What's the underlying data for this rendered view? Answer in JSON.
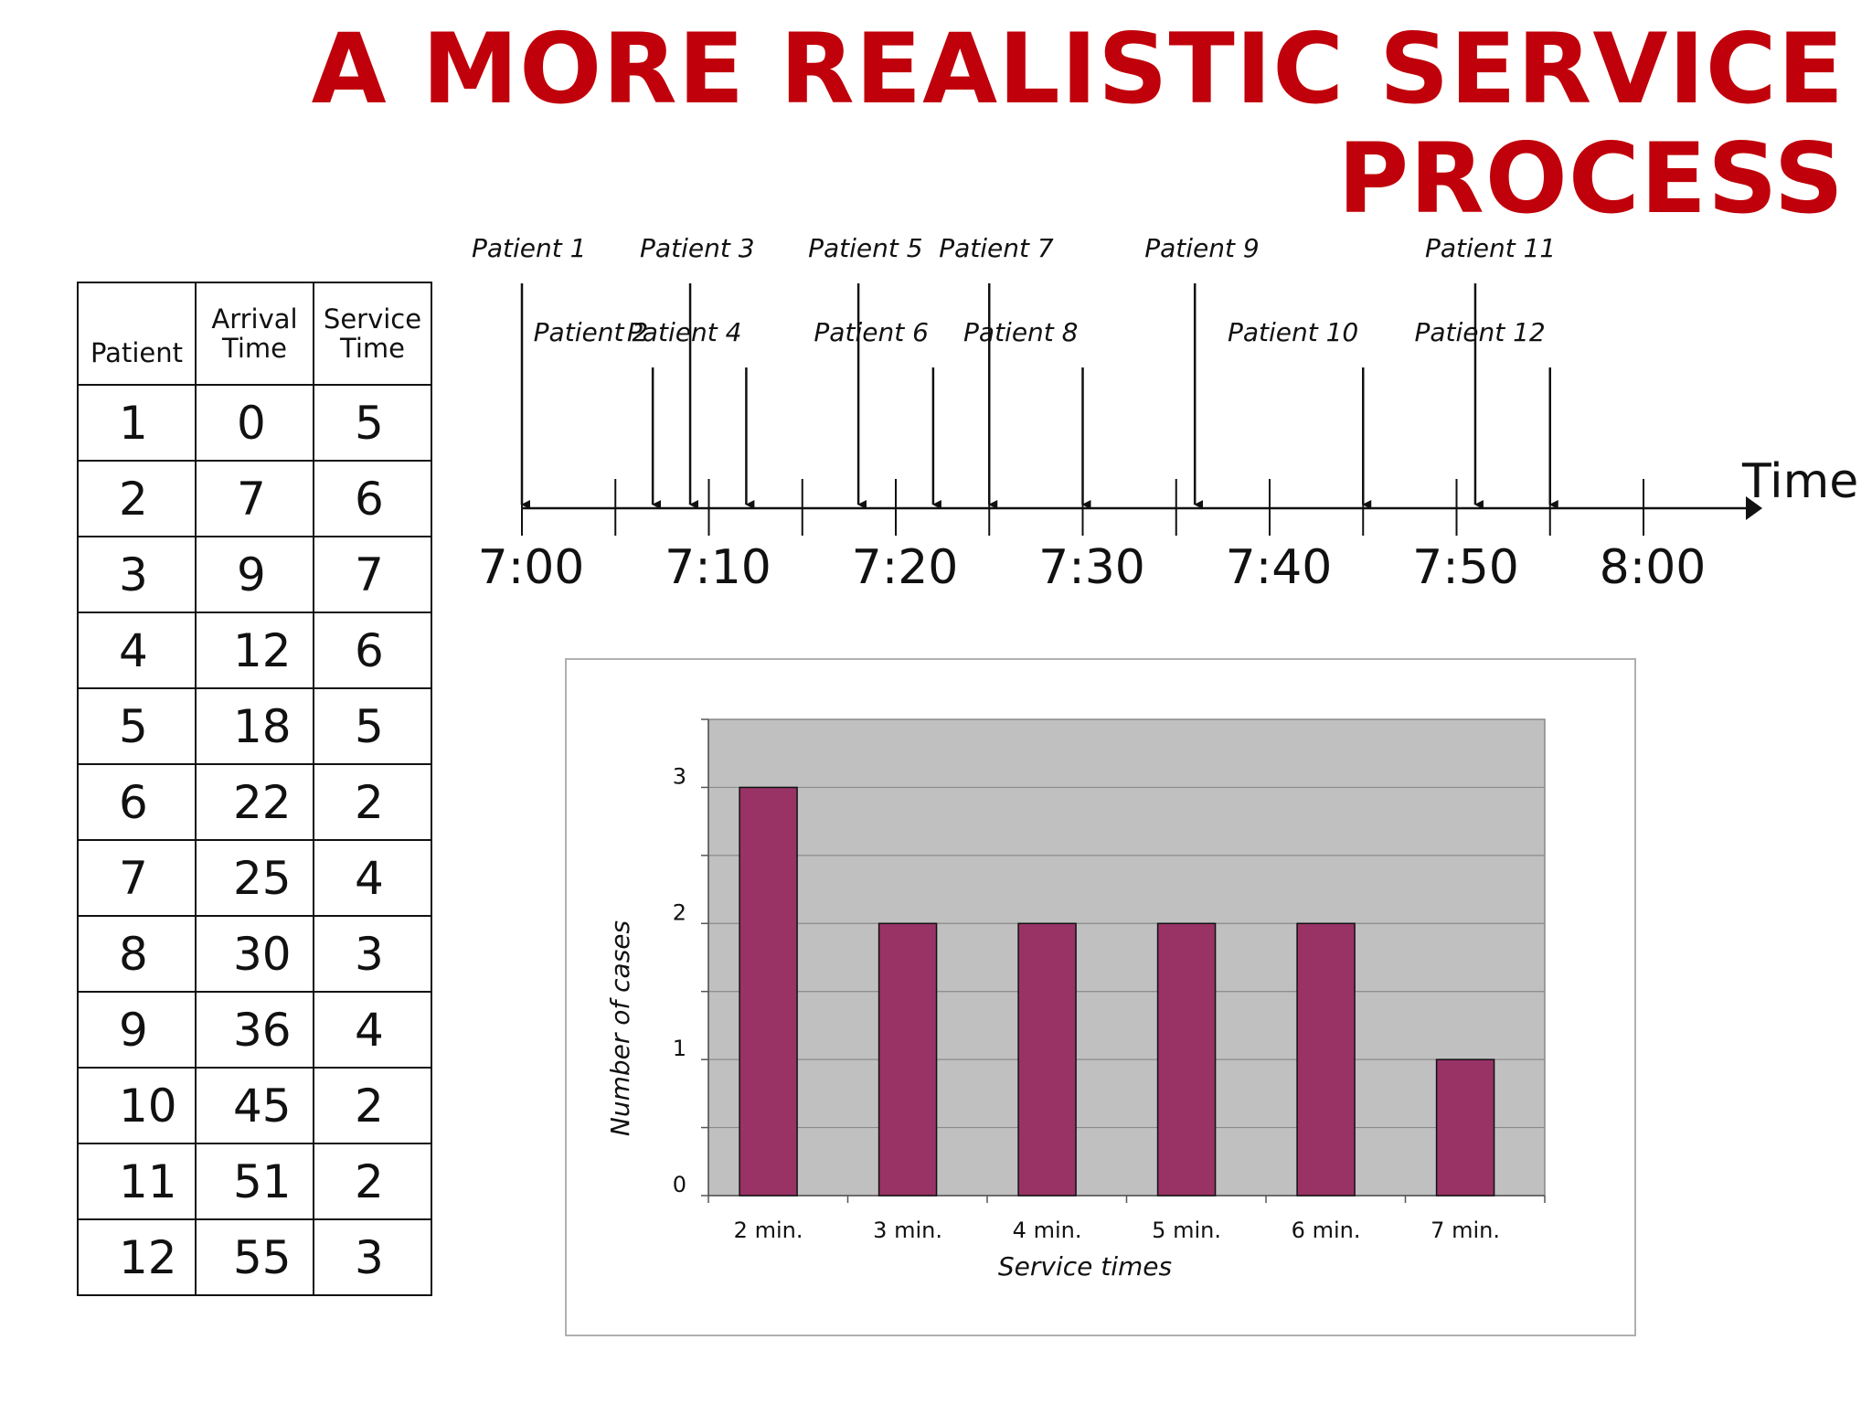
{
  "title": {
    "line1": "A MORE REALISTIC SERVICE",
    "line2": "PROCESS"
  },
  "table": {
    "headers": [
      "Patient",
      "Arrival Time",
      "Service Time"
    ],
    "rows": [
      {
        "patient": "1",
        "arrival": "0",
        "service": "5"
      },
      {
        "patient": "2",
        "arrival": "7",
        "service": "6"
      },
      {
        "patient": "3",
        "arrival": "9",
        "service": "7"
      },
      {
        "patient": "4",
        "arrival": "12",
        "service": "6"
      },
      {
        "patient": "5",
        "arrival": "18",
        "service": "5"
      },
      {
        "patient": "6",
        "arrival": "22",
        "service": "2"
      },
      {
        "patient": "7",
        "arrival": "25",
        "service": "4"
      },
      {
        "patient": "8",
        "arrival": "30",
        "service": "3"
      },
      {
        "patient": "9",
        "arrival": "36",
        "service": "4"
      },
      {
        "patient": "10",
        "arrival": "45",
        "service": "2"
      },
      {
        "patient": "11",
        "arrival": "51",
        "service": "2"
      },
      {
        "patient": "12",
        "arrival": "55",
        "service": "3"
      }
    ]
  },
  "timeline": {
    "axis_label": "Time",
    "tick_labels": [
      "7:00",
      "7:10",
      "7:20",
      "7:30",
      "7:40",
      "7:50",
      "8:00"
    ],
    "arrivals": [
      {
        "label": "Patient 1",
        "minute": 0,
        "row": "upper"
      },
      {
        "label": "Patient 2",
        "minute": 7,
        "row": "lower"
      },
      {
        "label": "Patient 3",
        "minute": 9,
        "row": "upper"
      },
      {
        "label": "Patient 4",
        "minute": 12,
        "row": "lower"
      },
      {
        "label": "Patient 5",
        "minute": 18,
        "row": "upper"
      },
      {
        "label": "Patient 6",
        "minute": 22,
        "row": "lower"
      },
      {
        "label": "Patient 7",
        "minute": 25,
        "row": "upper"
      },
      {
        "label": "Patient 8",
        "minute": 30,
        "row": "lower"
      },
      {
        "label": "Patient 9",
        "minute": 36,
        "row": "upper"
      },
      {
        "label": "Patient 10",
        "minute": 45,
        "row": "lower"
      },
      {
        "label": "Patient 11",
        "minute": 51,
        "row": "upper"
      },
      {
        "label": "Patient 12",
        "minute": 55,
        "row": "lower"
      }
    ]
  },
  "chart_data": {
    "type": "bar",
    "categories": [
      "2 min.",
      "3 min.",
      "4 min.",
      "5 min.",
      "6 min.",
      "7 min."
    ],
    "values": [
      3,
      2,
      2,
      2,
      2,
      1
    ],
    "xlabel": "Service times",
    "ylabel": "Number of cases",
    "ylim": [
      0,
      3.5
    ],
    "yticks": [
      0,
      1,
      2,
      3
    ],
    "grid": true,
    "colors": {
      "bar": "#993366",
      "plot_bg": "#c0c0c0"
    }
  }
}
